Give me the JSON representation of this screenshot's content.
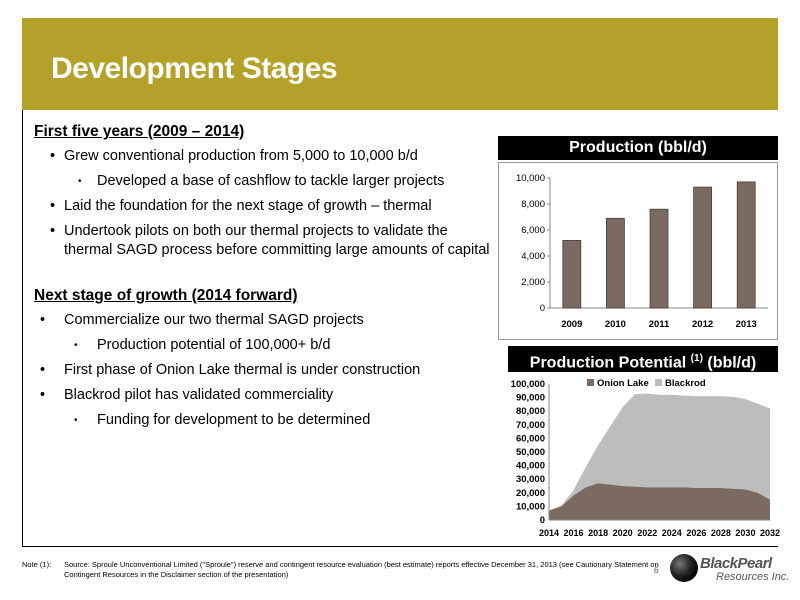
{
  "header": {
    "title": "Development Stages"
  },
  "section1": {
    "heading": "First five years (2009 – 2014)",
    "bullets": [
      "Grew conventional production from 5,000 to 10,000 b/d",
      "Developed a base of cashflow to tackle larger projects",
      "Laid the foundation for the next stage of growth – thermal",
      "Undertook pilots on both our thermal projects to validate the thermal SAGD process before committing large amounts of capital"
    ]
  },
  "section2": {
    "heading": "Next stage of growth (2014 forward)",
    "bullets": [
      "Commercialize our two thermal SAGD projects",
      "Production potential of 100,000+ b/d",
      "First phase of Onion Lake thermal is under construction",
      "Blackrod pilot has validated commerciality",
      "Funding for development to be determined"
    ]
  },
  "chart1_header": "Production (bbl/d)",
  "chart2_header": {
    "text": "Production Potential",
    "sup": "(1)",
    "unit": "(bbl/d)"
  },
  "chart_data": [
    {
      "type": "bar",
      "categories": [
        "2009",
        "2010",
        "2011",
        "2012",
        "2013"
      ],
      "values": [
        5200,
        6900,
        7600,
        9300,
        9700
      ],
      "ylim": [
        0,
        10000
      ],
      "yticks": [
        "0",
        "2,000",
        "4,000",
        "6,000",
        "8,000",
        "10,000"
      ],
      "bar_color": "#7a6a62",
      "grid": false
    },
    {
      "type": "area",
      "stacked": true,
      "x": [
        2014,
        2015,
        2016,
        2017,
        2018,
        2019,
        2020,
        2021,
        2022,
        2023,
        2024,
        2025,
        2026,
        2027,
        2028,
        2029,
        2030,
        2031,
        2032
      ],
      "xticks": [
        "2014",
        "2016",
        "2018",
        "2020",
        "2022",
        "2024",
        "2026",
        "2028",
        "2030",
        "2032"
      ],
      "yticks": [
        "0",
        "10,000",
        "20,000",
        "30,000",
        "40,000",
        "50,000",
        "60,000",
        "70,000",
        "80,000",
        "90,000",
        "100,000"
      ],
      "ylim": [
        0,
        100000
      ],
      "legend_position": "top",
      "series": [
        {
          "name": "Onion Lake",
          "color": "#7a6a62",
          "values": [
            7000,
            10000,
            18000,
            24000,
            27000,
            26000,
            25000,
            24500,
            24000,
            24000,
            24000,
            24000,
            23500,
            23500,
            23500,
            23000,
            22500,
            20000,
            15000
          ]
        },
        {
          "name": "Blackrod",
          "color": "#bdbdbd",
          "values": [
            0,
            500,
            4000,
            15000,
            28000,
            43000,
            58000,
            68000,
            69000,
            68000,
            68000,
            67500,
            67500,
            67500,
            67500,
            67500,
            66500,
            65500,
            67000
          ]
        }
      ]
    }
  ],
  "footnote": {
    "label": "Note (1):",
    "text": "Source: Sproule Unconventional Limited (\"Sproule\") reserve and contingent resource evaluation (best estimate) reports effective December 31, 2013 (see Cautionary Statement on Contingent Resources in the Disclaimer section of the presentation)"
  },
  "page_number": "6",
  "logo": {
    "name": "BlackPearl",
    "sub": "Resources Inc."
  }
}
